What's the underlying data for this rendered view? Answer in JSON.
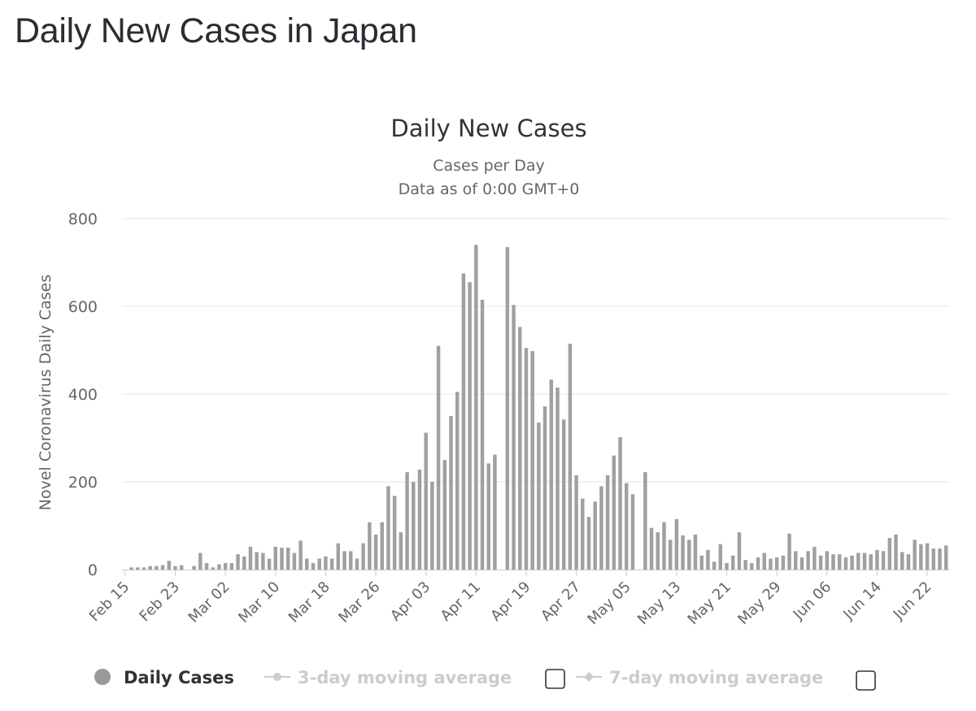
{
  "page": {
    "title": "Daily New Cases in Japan"
  },
  "chart_data": {
    "type": "bar",
    "title": "Daily New Cases",
    "subtitle_line1": "Cases per Day",
    "subtitle_line2": "Data as of 0:00 GMT+0",
    "ylabel": "Novel Coronavirus Daily Cases",
    "xlabel": "",
    "ylim": [
      0,
      800
    ],
    "y_ticks": [
      0,
      200,
      400,
      600,
      800
    ],
    "grid": true,
    "start_date": "Feb 15",
    "x_tick_labels": [
      "Feb 15",
      "Feb 23",
      "Mar 02",
      "Mar 10",
      "Mar 18",
      "Mar 26",
      "Apr 03",
      "Apr 11",
      "Apr 19",
      "Apr 27",
      "May 05",
      "May 13",
      "May 21",
      "May 29",
      "Jun 06",
      "Jun 14",
      "Jun 22"
    ],
    "x_tick_every": 8,
    "bar_color": "#a0a0a0",
    "series": [
      {
        "name": "Daily Cases",
        "values": [
          0,
          5,
          5,
          5,
          8,
          8,
          10,
          20,
          8,
          10,
          0,
          8,
          38,
          15,
          5,
          12,
          15,
          15,
          35,
          30,
          52,
          40,
          38,
          25,
          52,
          50,
          50,
          38,
          66,
          25,
          15,
          25,
          30,
          25,
          60,
          42,
          42,
          25,
          60,
          108,
          80,
          108,
          190,
          168,
          85,
          222,
          200,
          228,
          312,
          200,
          510,
          250,
          350,
          405,
          675,
          655,
          740,
          615,
          242,
          262,
          0,
          735,
          603,
          553,
          505,
          498,
          335,
          372,
          433,
          415,
          342,
          515,
          215,
          162,
          120,
          155,
          190,
          215,
          260,
          302,
          197,
          172,
          0,
          222,
          95,
          85,
          108,
          68,
          115,
          78,
          68,
          80,
          32,
          45,
          18,
          58,
          15,
          32,
          85,
          22,
          15,
          28,
          38,
          25,
          28,
          32,
          82,
          42,
          28,
          42,
          52,
          32,
          42,
          35,
          35,
          28,
          32,
          38,
          38,
          35,
          45,
          42,
          72,
          80,
          40,
          35,
          68,
          58,
          60,
          48,
          48,
          55
        ]
      }
    ],
    "legend": {
      "placement": "bottom-center",
      "items": [
        {
          "label": "Daily Cases",
          "active": true,
          "color": "#999999"
        },
        {
          "label": "3-day moving average",
          "active": false,
          "color": "#cccccc"
        },
        {
          "label": "7-day moving average",
          "active": false,
          "color": "#cccccc"
        }
      ]
    }
  }
}
